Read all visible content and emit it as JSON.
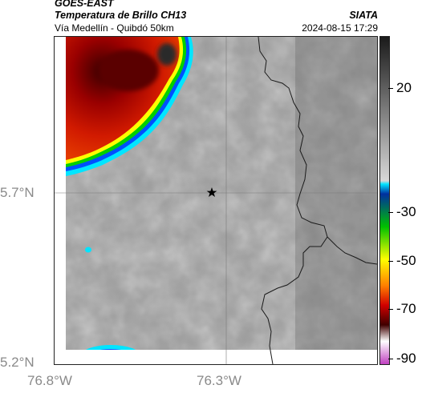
{
  "header": {
    "satellite": "GOES-EAST",
    "product": "Temperatura de Brillo CH13",
    "route": "Vía Medellín - Quibdó 50km",
    "organization": "SIATA",
    "timestamp": "2024-08-15 17:29"
  },
  "axes": {
    "lat_labels": [
      "5.7°N",
      "5.2°N"
    ],
    "lon_labels": [
      "76.8°W",
      "76.3°W"
    ]
  },
  "colorbar": {
    "labels": [
      "20",
      "-30",
      "-50",
      "-70",
      "-90"
    ],
    "stops": [
      {
        "color": "#1a1a1a"
      },
      {
        "color": "#7a7a7a"
      },
      {
        "color": "#d8d8d8"
      },
      {
        "color": "#00e5ff"
      },
      {
        "color": "#0030a0"
      },
      {
        "color": "#00c000"
      },
      {
        "color": "#ffff00"
      },
      {
        "color": "#ff8000"
      },
      {
        "color": "#d00000"
      },
      {
        "color": "#400000"
      },
      {
        "color": "#ffffff"
      },
      {
        "color": "#c040c0"
      }
    ]
  },
  "map": {
    "marker_icon": "star-icon",
    "cloud_colors": {
      "coldest": "#303030",
      "very_cold": "#600000",
      "cold": "#c00000",
      "warm_edge": "#ffff00",
      "green_edge": "#00e000",
      "blue_edge": "#0070ff",
      "cyan_edge": "#00e5ff"
    }
  }
}
